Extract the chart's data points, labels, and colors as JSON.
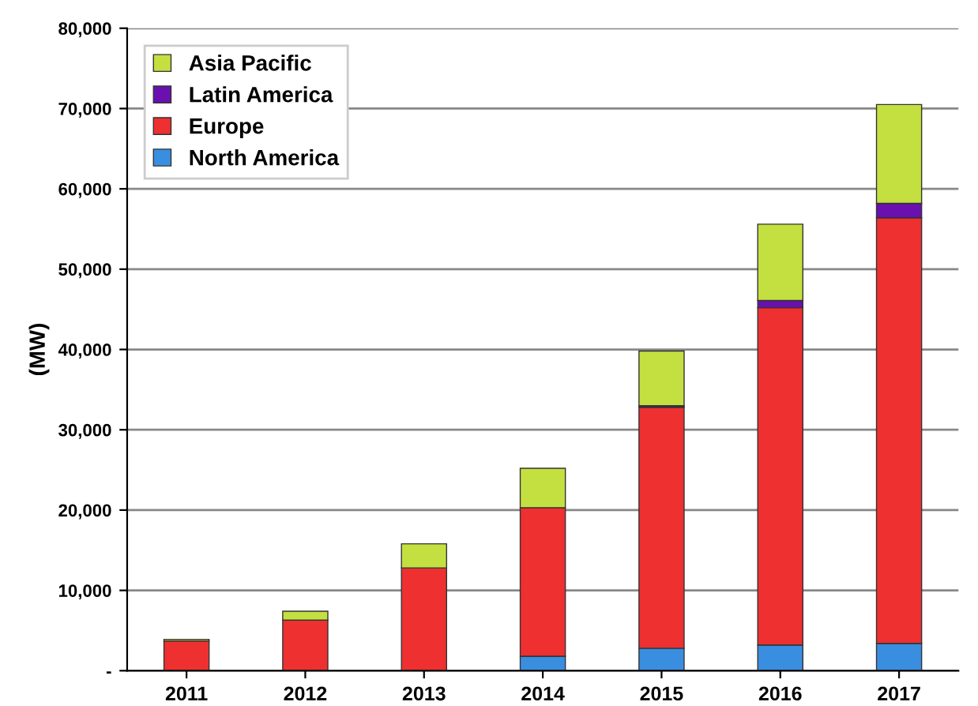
{
  "chart_data": {
    "type": "bar",
    "stacked": true,
    "ylabel": "(MW)",
    "categories": [
      "2011",
      "2012",
      "2013",
      "2014",
      "2015",
      "2016",
      "2017"
    ],
    "series": [
      {
        "name": "North America",
        "color": "#3a8ee0",
        "values": [
          null,
          null,
          null,
          1800,
          2800,
          3200,
          3400
        ]
      },
      {
        "name": "Europe",
        "color": "#ee3030",
        "values": [
          3700,
          6300,
          12800,
          18500,
          30000,
          42000,
          53000
        ]
      },
      {
        "name": "Latin America",
        "color": "#6a10b0",
        "values": [
          null,
          null,
          null,
          null,
          200,
          900,
          1800
        ]
      },
      {
        "name": "Asia Pacific",
        "color": "#c4e040",
        "values": [
          200,
          1100,
          3000,
          4900,
          6800,
          9500,
          12300
        ]
      }
    ],
    "ylim": [
      0,
      80000
    ],
    "yticks": [
      {
        "value": 0,
        "label": "-"
      },
      {
        "value": 10000,
        "label": "10,000"
      },
      {
        "value": 20000,
        "label": "20,000"
      },
      {
        "value": 30000,
        "label": "30,000"
      },
      {
        "value": 40000,
        "label": "40,000"
      },
      {
        "value": 50000,
        "label": "50,000"
      },
      {
        "value": 60000,
        "label": "60,000"
      },
      {
        "value": 70000,
        "label": "70,000"
      },
      {
        "value": 80000,
        "label": "80,000"
      }
    ],
    "grid": "y",
    "legend": "top left"
  }
}
